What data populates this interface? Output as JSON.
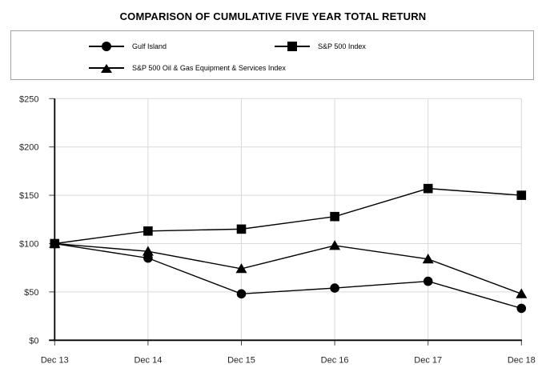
{
  "chart_data": {
    "type": "line",
    "title": "COMPARISON OF CUMULATIVE FIVE YEAR TOTAL RETURN",
    "categories": [
      "Dec 13",
      "Dec 14",
      "Dec 15",
      "Dec 16",
      "Dec 17",
      "Dec 18"
    ],
    "series": [
      {
        "name": "Gulf Island",
        "marker": "circle",
        "color": "#000000",
        "values": [
          100,
          85,
          48,
          54,
          61,
          33
        ]
      },
      {
        "name": "S&P 500 Index",
        "marker": "square",
        "color": "#000000",
        "values": [
          100,
          113,
          115,
          128,
          157,
          150
        ]
      },
      {
        "name": "S&P 500 Oil & Gas Equipment & Services Index",
        "marker": "triangle",
        "color": "#000000",
        "values": [
          100,
          92,
          74,
          98,
          84,
          48
        ]
      }
    ],
    "xlabel": "",
    "ylabel": "",
    "ytick_prefix": "$",
    "yticks": [
      0,
      50,
      100,
      150,
      200,
      250
    ],
    "ylim": [
      0,
      250
    ],
    "grid": true,
    "gridline_color": "#d9d9d9",
    "axis_color": "#000000",
    "legend_position": "top-box"
  },
  "legend": {
    "items": [
      {
        "label": "Gulf Island",
        "marker": "circle"
      },
      {
        "label": "S&P 500 Index",
        "marker": "square"
      },
      {
        "label": "S&P 500 Oil & Gas Equipment & Services Index",
        "marker": "triangle"
      }
    ]
  }
}
